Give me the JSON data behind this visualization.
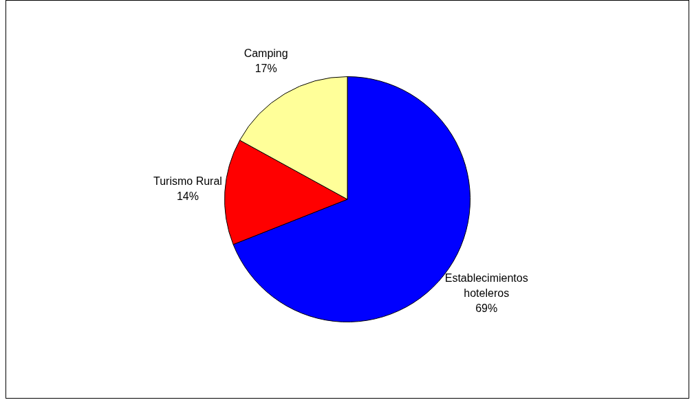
{
  "chart_data": {
    "type": "pie",
    "categories": [
      "Establecimientos hoteleros",
      "Turismo Rural",
      "Camping"
    ],
    "values": [
      69,
      14,
      17
    ],
    "value_labels": [
      "69%",
      "14%",
      "17%"
    ],
    "colors": [
      "#0000ff",
      "#ff0000",
      "#ffff99"
    ],
    "legend": false
  }
}
